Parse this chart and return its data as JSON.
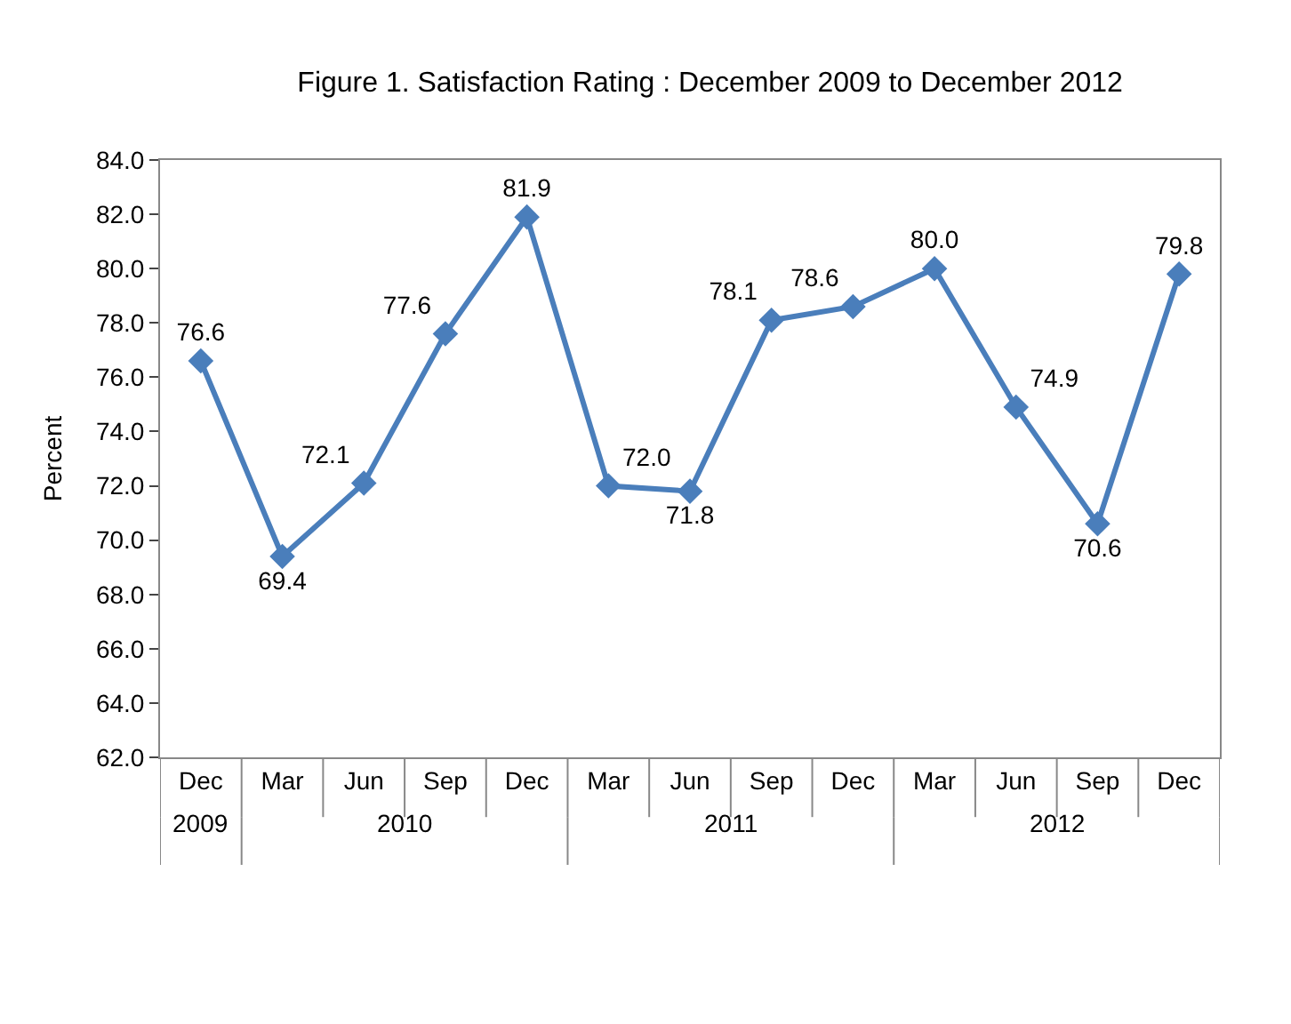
{
  "chart_data": {
    "type": "line",
    "title": "Figure 1. Satisfaction Rating : December 2009 to December 2012",
    "ylabel": "Percent",
    "categories": [
      "Dec",
      "Mar",
      "Jun",
      "Sep",
      "Dec",
      "Mar",
      "Jun",
      "Sep",
      "Dec",
      "Mar",
      "Jun",
      "Sep",
      "Dec"
    ],
    "series": [
      {
        "color": "#4a7ebb",
        "values": [
          76.6,
          69.4,
          72.1,
          77.6,
          81.9,
          72.0,
          71.8,
          78.1,
          78.6,
          80.0,
          74.9,
          70.6,
          79.8
        ],
        "value_labels": [
          "76.6",
          "69.4",
          "72.1",
          "77.6",
          "81.9",
          "72.0",
          "71.8",
          "78.1",
          "78.6",
          "80.0",
          "74.9",
          "70.6",
          "79.8"
        ]
      }
    ],
    "annotations": [
      "2009",
      "2010",
      "2011",
      "2012"
    ],
    "ylim": [
      62,
      84
    ],
    "yticks": [
      {
        "value": 62,
        "label": "62.0"
      },
      {
        "value": 64,
        "label": "64.0"
      },
      {
        "value": 66,
        "label": "66.0"
      },
      {
        "value": 68,
        "label": "68.0"
      },
      {
        "value": 70,
        "label": "70.0"
      },
      {
        "value": 72,
        "label": "72.0"
      },
      {
        "value": 74,
        "label": "74.0"
      },
      {
        "value": 76,
        "label": "76.0"
      },
      {
        "value": 78,
        "label": "78.0"
      },
      {
        "value": 80,
        "label": "80.0"
      },
      {
        "value": 82,
        "label": "82.0"
      },
      {
        "value": 84,
        "label": "84.0"
      }
    ],
    "marker": "diamond",
    "line_style": "solid",
    "grid": false,
    "legend": false
  }
}
